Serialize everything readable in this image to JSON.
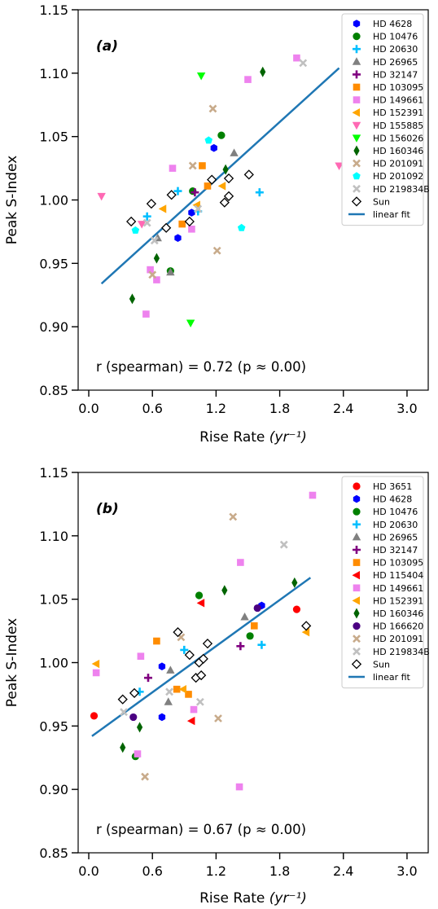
{
  "chart_data": [
    {
      "panel_label": "(a)",
      "type": "scatter",
      "xlabel": "Rise Rate",
      "xlabel_unit": "(yr⁻¹)",
      "ylabel": "Peak S-Index",
      "xlim": [
        -0.1,
        3.2
      ],
      "ylim": [
        0.85,
        1.15
      ],
      "xticks": [
        "0.0",
        "0.6",
        "1.2",
        "1.8",
        "2.4",
        "3.0"
      ],
      "yticks": [
        "0.85",
        "0.90",
        "0.95",
        "1.00",
        "1.05",
        "1.10",
        "1.15"
      ],
      "annotation": "r (spearman) = 0.72  (p ≈ 0.00)",
      "legend_position": "top-right",
      "series": [
        {
          "name": "HD 4628",
          "marker": "hexagon",
          "color": "#0000ff",
          "points": [
            [
              0.84,
              0.97
            ],
            [
              0.97,
              0.99
            ],
            [
              1.18,
              1.041
            ]
          ]
        },
        {
          "name": "HD 10476",
          "marker": "circle",
          "color": "#008000",
          "points": [
            [
              0.77,
              0.944
            ],
            [
              0.98,
              1.007
            ],
            [
              1.25,
              1.051
            ]
          ]
        },
        {
          "name": "HD 20630",
          "marker": "plus",
          "color": "#00bfff",
          "points": [
            [
              0.55,
              0.987
            ],
            [
              0.84,
              1.007
            ],
            [
              1.03,
              0.991
            ],
            [
              1.61,
              1.006
            ]
          ]
        },
        {
          "name": "HD 26965",
          "marker": "triangle-up",
          "color": "#808080",
          "points": [
            [
              0.65,
              0.97
            ],
            [
              0.77,
              0.943
            ],
            [
              1.37,
              1.037
            ]
          ]
        },
        {
          "name": "HD 32147",
          "marker": "plus",
          "color": "#800080",
          "points": [
            [
              1.0,
              1.006
            ]
          ]
        },
        {
          "name": "HD 103095",
          "marker": "square",
          "color": "#ff8c00",
          "points": [
            [
              0.88,
              0.981
            ],
            [
              1.07,
              1.027
            ],
            [
              1.12,
              1.011
            ]
          ]
        },
        {
          "name": "HD 149661",
          "marker": "square",
          "color": "#ee82ee",
          "points": [
            [
              0.54,
              0.91
            ],
            [
              0.58,
              0.945
            ],
            [
              0.64,
              0.937
            ],
            [
              0.79,
              1.025
            ],
            [
              0.97,
              0.977
            ],
            [
              1.5,
              1.095
            ],
            [
              1.96,
              1.112
            ]
          ]
        },
        {
          "name": "HD 152391",
          "marker": "triangle-left",
          "color": "#ffa500",
          "points": [
            [
              0.7,
              0.993
            ],
            [
              1.02,
              0.996
            ],
            [
              1.26,
              1.011
            ]
          ]
        },
        {
          "name": "HD 155885",
          "marker": "triangle-down",
          "color": "#ff69b4",
          "points": [
            [
              0.12,
              1.003
            ],
            [
              0.5,
              0.981
            ],
            [
              2.36,
              1.027
            ]
          ]
        },
        {
          "name": "HD 156026",
          "marker": "triangle-down",
          "color": "#00ff00",
          "points": [
            [
              0.96,
              0.903
            ],
            [
              1.06,
              1.098
            ]
          ]
        },
        {
          "name": "HD 160346",
          "marker": "diamond",
          "color": "#006400",
          "points": [
            [
              0.41,
              0.922
            ],
            [
              0.64,
              0.954
            ],
            [
              1.29,
              1.024
            ],
            [
              1.64,
              1.101
            ]
          ]
        },
        {
          "name": "HD 201091",
          "marker": "x",
          "color": "#c8ab8b",
          "points": [
            [
              0.6,
              0.941
            ],
            [
              0.98,
              1.027
            ],
            [
              1.17,
              1.072
            ],
            [
              1.21,
              0.96
            ]
          ]
        },
        {
          "name": "HD 201092",
          "marker": "pentagon",
          "color": "#00ffff",
          "points": [
            [
              0.44,
              0.976
            ],
            [
              1.13,
              1.047
            ],
            [
              1.44,
              0.978
            ]
          ]
        },
        {
          "name": "HD 219834B",
          "marker": "x",
          "color": "#c0c0c0",
          "points": [
            [
              0.55,
              0.982
            ],
            [
              0.62,
              0.968
            ],
            [
              1.03,
              0.993
            ],
            [
              2.02,
              1.108
            ]
          ]
        },
        {
          "name": "Sun",
          "marker": "diamond-open",
          "color": "#000000",
          "points": [
            [
              0.4,
              0.983
            ],
            [
              0.59,
              0.997
            ],
            [
              0.73,
              0.978
            ],
            [
              0.78,
              1.004
            ],
            [
              0.95,
              0.983
            ],
            [
              1.16,
              1.016
            ],
            [
              1.28,
              0.998
            ],
            [
              1.32,
              1.003
            ],
            [
              1.32,
              1.017
            ],
            [
              1.51,
              1.02
            ]
          ]
        }
      ],
      "fit": {
        "name": "linear fit",
        "color": "#1f77b4",
        "x": [
          0.12,
          2.36
        ],
        "y": [
          0.934,
          1.104
        ]
      }
    },
    {
      "panel_label": "(b)",
      "type": "scatter",
      "xlabel": "Rise Rate",
      "xlabel_unit": "(yr⁻¹)",
      "ylabel": "Peak S-Index",
      "xlim": [
        -0.1,
        3.2
      ],
      "ylim": [
        0.85,
        1.15
      ],
      "xticks": [
        "0.0",
        "0.6",
        "1.2",
        "1.8",
        "2.4",
        "3.0"
      ],
      "yticks": [
        "0.85",
        "0.90",
        "0.95",
        "1.00",
        "1.05",
        "1.10",
        "1.15"
      ],
      "annotation": "r (spearman) = 0.67  (p ≈ 0.00)",
      "legend_position": "top-right",
      "series": [
        {
          "name": "HD 3651",
          "marker": "circle",
          "color": "#ff0000",
          "points": [
            [
              0.05,
              0.958
            ],
            [
              1.96,
              1.042
            ]
          ]
        },
        {
          "name": "HD 4628",
          "marker": "hexagon",
          "color": "#0000ff",
          "points": [
            [
              0.69,
              0.957
            ],
            [
              0.69,
              0.997
            ],
            [
              1.63,
              1.045
            ]
          ]
        },
        {
          "name": "HD 10476",
          "marker": "circle",
          "color": "#008000",
          "points": [
            [
              0.44,
              0.926
            ],
            [
              1.04,
              1.053
            ],
            [
              1.52,
              1.021
            ]
          ]
        },
        {
          "name": "HD 20630",
          "marker": "plus",
          "color": "#00bfff",
          "points": [
            [
              0.48,
              0.977
            ],
            [
              0.9,
              1.01
            ],
            [
              1.63,
              1.014
            ]
          ]
        },
        {
          "name": "HD 26965",
          "marker": "triangle-up",
          "color": "#808080",
          "points": [
            [
              0.75,
              0.969
            ],
            [
              0.77,
              0.994
            ],
            [
              1.47,
              1.036
            ]
          ]
        },
        {
          "name": "HD 32147",
          "marker": "plus",
          "color": "#800080",
          "points": [
            [
              0.56,
              0.988
            ],
            [
              1.43,
              1.013
            ]
          ]
        },
        {
          "name": "HD 103095",
          "marker": "square",
          "color": "#ff8c00",
          "points": [
            [
              0.64,
              1.017
            ],
            [
              0.83,
              0.979
            ],
            [
              0.94,
              0.975
            ],
            [
              1.56,
              1.029
            ]
          ]
        },
        {
          "name": "HD 115404",
          "marker": "triangle-left",
          "color": "#ff0000",
          "points": [
            [
              0.97,
              0.954
            ],
            [
              1.06,
              1.047
            ]
          ]
        },
        {
          "name": "HD 149661",
          "marker": "square",
          "color": "#ee82ee",
          "points": [
            [
              0.07,
              0.992
            ],
            [
              0.46,
              0.928
            ],
            [
              0.49,
              1.005
            ],
            [
              0.99,
              0.963
            ],
            [
              1.42,
              0.902
            ],
            [
              1.43,
              1.079
            ],
            [
              2.11,
              1.132
            ]
          ]
        },
        {
          "name": "HD 152391",
          "marker": "triangle-left",
          "color": "#ffa500",
          "points": [
            [
              0.07,
              0.999
            ],
            [
              0.89,
              0.979
            ],
            [
              2.05,
              1.024
            ]
          ]
        },
        {
          "name": "HD 160346",
          "marker": "diamond",
          "color": "#006400",
          "points": [
            [
              0.32,
              0.933
            ],
            [
              0.48,
              0.949
            ],
            [
              1.28,
              1.057
            ],
            [
              1.94,
              1.063
            ]
          ]
        },
        {
          "name": "HD 166620",
          "marker": "circle",
          "color": "#4b0082",
          "points": [
            [
              0.42,
              0.957
            ],
            [
              1.59,
              1.043
            ]
          ]
        },
        {
          "name": "HD 201091",
          "marker": "x",
          "color": "#c8ab8b",
          "points": [
            [
              0.53,
              0.91
            ],
            [
              0.87,
              1.02
            ],
            [
              1.22,
              0.956
            ],
            [
              1.36,
              1.115
            ]
          ]
        },
        {
          "name": "HD 219834B",
          "marker": "x",
          "color": "#c0c0c0",
          "points": [
            [
              0.33,
              0.961
            ],
            [
              0.76,
              0.977
            ],
            [
              1.05,
              0.969
            ],
            [
              1.84,
              1.093
            ]
          ]
        },
        {
          "name": "Sun",
          "marker": "diamond-open",
          "color": "#000000",
          "points": [
            [
              0.32,
              0.971
            ],
            [
              0.43,
              0.976
            ],
            [
              0.84,
              1.024
            ],
            [
              0.95,
              1.006
            ],
            [
              1.01,
              0.988
            ],
            [
              1.04,
              1.0
            ],
            [
              1.06,
              0.99
            ],
            [
              1.08,
              1.003
            ],
            [
              1.12,
              1.015
            ],
            [
              2.05,
              1.029
            ]
          ]
        }
      ],
      "fit": {
        "name": "linear fit",
        "color": "#1f77b4",
        "x": [
          0.03,
          2.09
        ],
        "y": [
          0.942,
          1.067
        ]
      }
    }
  ]
}
